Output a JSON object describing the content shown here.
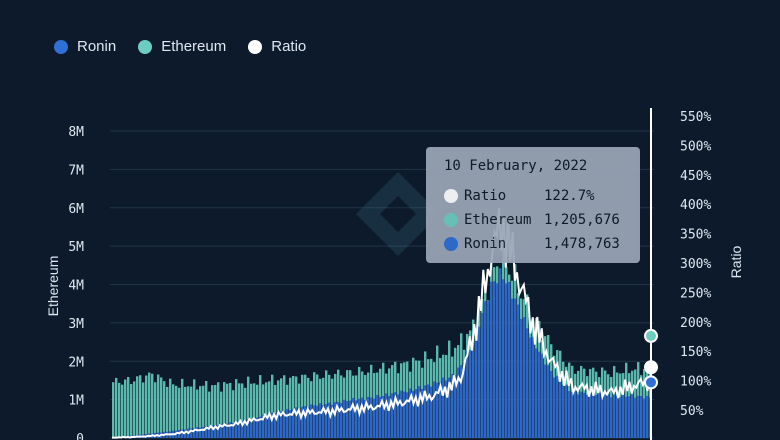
{
  "legend": [
    {
      "label": "Ronin",
      "color": "#2f6fd6"
    },
    {
      "label": "Ethereum",
      "color": "#6ecdc1"
    },
    {
      "label": "Ratio",
      "color": "#ffffff"
    }
  ],
  "tooltip": {
    "date": "10 February, 2022",
    "rows": [
      {
        "name": "Ratio",
        "value": "122.7%",
        "color": "#ffffff"
      },
      {
        "name": "Ethereum",
        "value": "1,205,676",
        "color": "#6ecdc1"
      },
      {
        "name": "Ronin",
        "value": "1,478,763",
        "color": "#2f6fd6"
      }
    ]
  },
  "chart_data": {
    "type": "bar",
    "ylabel": "Ethereum",
    "y2label": "Ratio",
    "ylim": [
      0,
      8500000
    ],
    "y2lim": [
      0,
      575
    ],
    "yticks": [
      "0",
      "1M",
      "2M",
      "3M",
      "4M",
      "5M",
      "6M",
      "7M",
      "8M"
    ],
    "y2ticks": [
      "50%",
      "100%",
      "150%",
      "200%",
      "250%",
      "300%",
      "350%",
      "400%",
      "450%",
      "500%",
      "550%"
    ],
    "grid": true,
    "x": [
      0,
      10,
      20,
      30,
      40,
      50,
      60,
      70,
      80,
      90,
      100,
      110,
      120,
      130,
      140,
      150,
      160,
      170,
      175,
      180,
      185,
      190,
      195,
      200,
      210,
      220,
      230,
      240,
      250,
      260,
      270
    ],
    "series": [
      {
        "name": "Ethereum",
        "values": [
          1450000,
          1500000,
          1650000,
          1400000,
          1380000,
          1350000,
          1400000,
          1450000,
          1500000,
          1550000,
          1600000,
          1650000,
          1700000,
          1750000,
          1850000,
          1950000,
          2100000,
          2300000,
          2500000,
          2800000,
          3500000,
          4300000,
          4700000,
          4300000,
          3200000,
          2400000,
          1800000,
          1750000,
          1700000,
          1800000,
          1800000
        ]
      },
      {
        "name": "Ronin",
        "values": [
          20000,
          60000,
          120000,
          180000,
          250000,
          320000,
          400000,
          500000,
          650000,
          750000,
          850000,
          900000,
          1000000,
          1050000,
          1150000,
          1250000,
          1400000,
          1600000,
          1900000,
          2400000,
          3200000,
          4000000,
          4300000,
          3800000,
          2600000,
          1700000,
          1200000,
          1150000,
          1100000,
          1100000,
          1050000
        ]
      },
      {
        "name": "Ratio",
        "values": [
          3,
          4,
          6,
          9,
          14,
          20,
          25,
          32,
          40,
          44,
          46,
          48,
          52,
          55,
          60,
          66,
          74,
          90,
          110,
          170,
          240,
          320,
          370,
          310,
          200,
          130,
          90,
          85,
          80,
          90,
          100
        ]
      }
    ]
  }
}
